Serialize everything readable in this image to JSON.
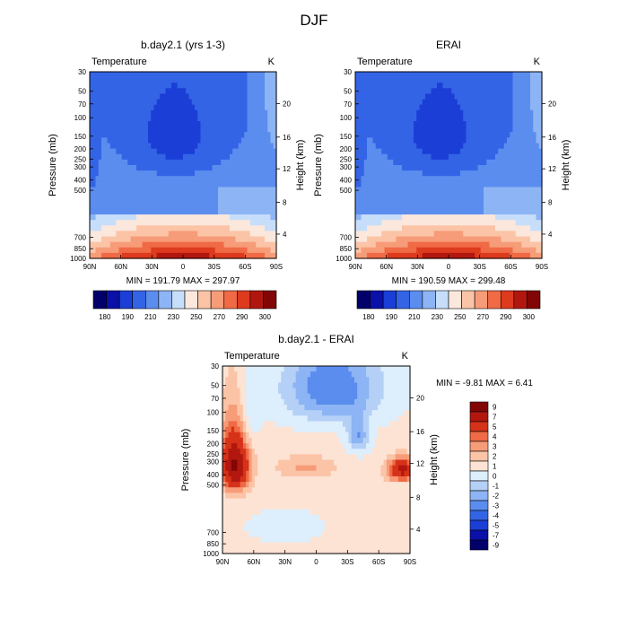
{
  "figure_title": "DJF",
  "chart_data": [
    {
      "type": "heatmap",
      "panel": "top-left",
      "title": "b.day2.1 (yrs 1-3)",
      "left_label": "Temperature",
      "right_label": "K",
      "xlabel": "",
      "ylabel": "Pressure (mb)",
      "y2label": "Height (km)",
      "x_ticks": [
        "90N",
        "60N",
        "30N",
        "0",
        "30S",
        "60S",
        "90S"
      ],
      "y_ticks": [
        "30",
        "50",
        "70",
        "100",
        "150",
        "200",
        "250",
        "300",
        "400",
        "500",
        "700",
        "850",
        "1000"
      ],
      "y2_ticks": [
        "20",
        "16",
        "12",
        "8",
        "4"
      ],
      "stats": "MIN = 191.79   MAX = 297.97",
      "min": 191.79,
      "max": 297.97,
      "levels": [
        180,
        190,
        200,
        210,
        220,
        230,
        240,
        250,
        260,
        270,
        280,
        290,
        300
      ],
      "colorbar_labels": [
        "180",
        "190",
        "210",
        "230",
        "250",
        "270",
        "290",
        "300"
      ],
      "colorbar_placement": "bottom"
    },
    {
      "type": "heatmap",
      "panel": "top-right",
      "title": "ERAI",
      "left_label": "Temperature",
      "right_label": "K",
      "xlabel": "",
      "ylabel": "Pressure (mb)",
      "y2label": "Height (km)",
      "x_ticks": [
        "90N",
        "60N",
        "30N",
        "0",
        "30S",
        "60S",
        "90S"
      ],
      "y_ticks": [
        "30",
        "50",
        "70",
        "100",
        "150",
        "200",
        "250",
        "300",
        "400",
        "500",
        "700",
        "850",
        "1000"
      ],
      "y2_ticks": [
        "20",
        "16",
        "12",
        "8",
        "4"
      ],
      "stats": "MIN = 190.59   MAX = 299.48",
      "min": 190.59,
      "max": 299.48,
      "levels": [
        180,
        190,
        200,
        210,
        220,
        230,
        240,
        250,
        260,
        270,
        280,
        290,
        300
      ],
      "colorbar_labels": [
        "180",
        "190",
        "210",
        "230",
        "250",
        "270",
        "290",
        "300"
      ],
      "colorbar_placement": "bottom"
    },
    {
      "type": "heatmap",
      "panel": "bottom",
      "title": "b.day2.1 - ERAI",
      "left_label": "Temperature",
      "right_label": "K",
      "xlabel": "",
      "ylabel": "Pressure (mb)",
      "y2label": "Height (km)",
      "x_ticks": [
        "90N",
        "60N",
        "30N",
        "0",
        "30S",
        "60S",
        "90S"
      ],
      "y_ticks": [
        "30",
        "50",
        "70",
        "100",
        "150",
        "200",
        "250",
        "300",
        "400",
        "500",
        "700",
        "850",
        "1000"
      ],
      "y2_ticks": [
        "20",
        "16",
        "12",
        "8",
        "4"
      ],
      "stats": "MIN =  -9.81   MAX =   6.41",
      "min": -9.81,
      "max": 6.41,
      "levels": [
        -9,
        -7,
        -5,
        -4,
        -3,
        -2,
        -1,
        0,
        1,
        2,
        3,
        4,
        5,
        7,
        9
      ],
      "colorbar_labels": [
        "9",
        "7",
        "5",
        "4",
        "3",
        "2",
        "1",
        "0",
        "-1",
        "-2",
        "-3",
        "-4",
        "-5",
        "-7",
        "-9"
      ],
      "colorbar_placement": "right"
    }
  ],
  "colors": {
    "full_scale": [
      "#02006b",
      "#0a10a8",
      "#1a3ed6",
      "#3464e6",
      "#5b8def",
      "#8db4f4",
      "#c7defa",
      "#fbe7dc",
      "#fbc4a7",
      "#f79c78",
      "#ef6a45",
      "#dd3a1e",
      "#b2170f",
      "#820606"
    ],
    "diff_scale": [
      "#820606",
      "#b2170f",
      "#d63219",
      "#ef6a45",
      "#f79c78",
      "#fbc4a7",
      "#fde3d4",
      "#ddeefc",
      "#b5d0f6",
      "#8db4f4",
      "#5b8def",
      "#3464e6",
      "#1a3ed6",
      "#0a10a8",
      "#02006b"
    ]
  }
}
